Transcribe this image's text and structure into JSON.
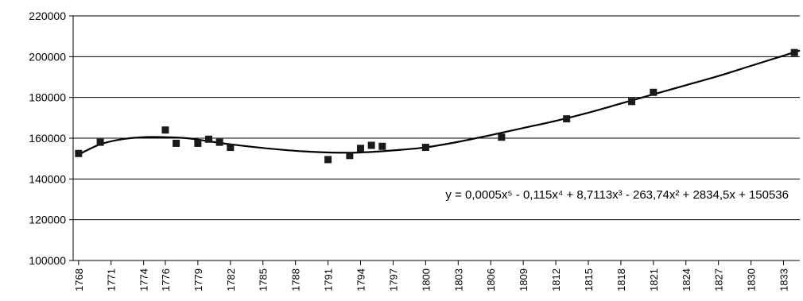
{
  "chart_data": {
    "type": "scatter",
    "title": "",
    "xlabel": "",
    "ylabel": "",
    "xlim": [
      1767.5,
      1834.5
    ],
    "ylim": [
      100000,
      220000
    ],
    "yticks": [
      100000,
      120000,
      140000,
      160000,
      180000,
      200000,
      220000
    ],
    "ytick_labels": [
      "100000",
      "120000",
      "140000",
      "160000",
      "180000",
      "200000",
      "220000"
    ],
    "xticks": [
      1768,
      1771,
      1774,
      1776,
      1779,
      1782,
      1785,
      1788,
      1791,
      1794,
      1797,
      1800,
      1803,
      1806,
      1809,
      1812,
      1815,
      1818,
      1821,
      1824,
      1827,
      1830,
      1833
    ],
    "xtick_labels": [
      "1768",
      "1771",
      "1774",
      "1776",
      "1779",
      "1782",
      "1785",
      "1788",
      "1791",
      "1794",
      "1797",
      "1800",
      "1803",
      "1806",
      "1809",
      "1812",
      "1815",
      "1818",
      "1821",
      "1824",
      "1827",
      "1830",
      "1833"
    ],
    "grid": "horizontal",
    "marker_color": "#1a1a1a",
    "line_color": "#000000",
    "grid_color": "#000000",
    "series": [
      {
        "x": [
          1768,
          1770,
          1776,
          1777,
          1779,
          1780,
          1781,
          1782,
          1791,
          1793,
          1794,
          1795,
          1796,
          1800,
          1807,
          1813,
          1819,
          1821,
          1834
        ],
        "y": [
          152500,
          158000,
          164000,
          157500,
          157500,
          159500,
          158000,
          155500,
          149500,
          151500,
          155000,
          156500,
          156000,
          155500,
          160500,
          169500,
          178000,
          182500,
          202000
        ]
      }
    ],
    "trendline": {
      "type": "polynomial",
      "order": 5,
      "equation": "y = 0,0005x⁵ - 0,115x⁴ + 8,7113x³ - 263,74x² + 2834,5x + 150536",
      "points": [
        [
          1768,
          152000
        ],
        [
          1770,
          157000
        ],
        [
          1772,
          159500
        ],
        [
          1774,
          160500
        ],
        [
          1776,
          160500
        ],
        [
          1778,
          160000
        ],
        [
          1780,
          158500
        ],
        [
          1782,
          157000
        ],
        [
          1785,
          155200
        ],
        [
          1788,
          153800
        ],
        [
          1791,
          153000
        ],
        [
          1794,
          153000
        ],
        [
          1797,
          154000
        ],
        [
          1800,
          155500
        ],
        [
          1803,
          158200
        ],
        [
          1806,
          161500
        ],
        [
          1809,
          165000
        ],
        [
          1812,
          168500
        ],
        [
          1815,
          172500
        ],
        [
          1818,
          177000
        ],
        [
          1821,
          181500
        ],
        [
          1824,
          186000
        ],
        [
          1827,
          190500
        ],
        [
          1830,
          195500
        ],
        [
          1833,
          200500
        ],
        [
          1834.5,
          203000
        ]
      ]
    }
  }
}
